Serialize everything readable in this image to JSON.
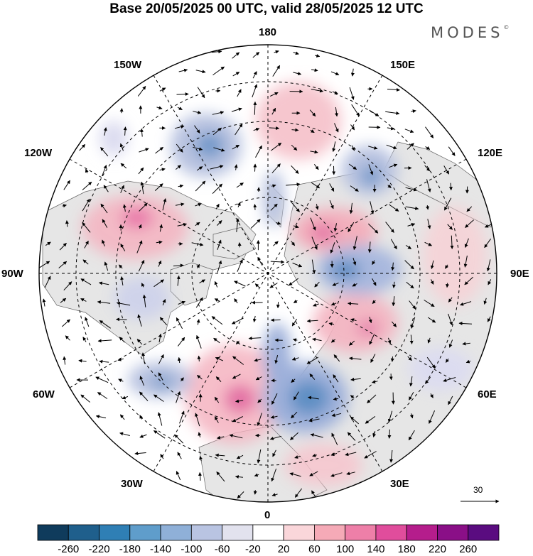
{
  "title": "Base 20/05/2025 00 UTC, valid 28/05/2025 12 UTC",
  "brand": {
    "text": "MODES",
    "mark": "©"
  },
  "longitude_labels": {
    "lon_180": "180",
    "lon_150e": "150E",
    "lon_120e": "120E",
    "lon_90e": "90E",
    "lon_60e": "60E",
    "lon_30e": "30E",
    "lon_0": "0",
    "lon_30w": "30W",
    "lon_60w": "60W",
    "lon_90w": "90W",
    "lon_120w": "120W",
    "lon_150w": "150W"
  },
  "vector_reference": "30",
  "colorbar": {
    "labels": [
      "-260",
      "-220",
      "-180",
      "-140",
      "-100",
      "-60",
      "-20",
      "20",
      "60",
      "100",
      "140",
      "180",
      "220",
      "260"
    ],
    "colors": [
      "#0f3b5c",
      "#1f5f8c",
      "#2f7fb5",
      "#5f9dcb",
      "#8fb0d8",
      "#b9c4e2",
      "#e2e2ee",
      "#ffffff",
      "#fad6da",
      "#f5aab7",
      "#ee7fa8",
      "#e04d9c",
      "#b51d8c",
      "#8a0f87",
      "#5a0c80"
    ]
  }
}
